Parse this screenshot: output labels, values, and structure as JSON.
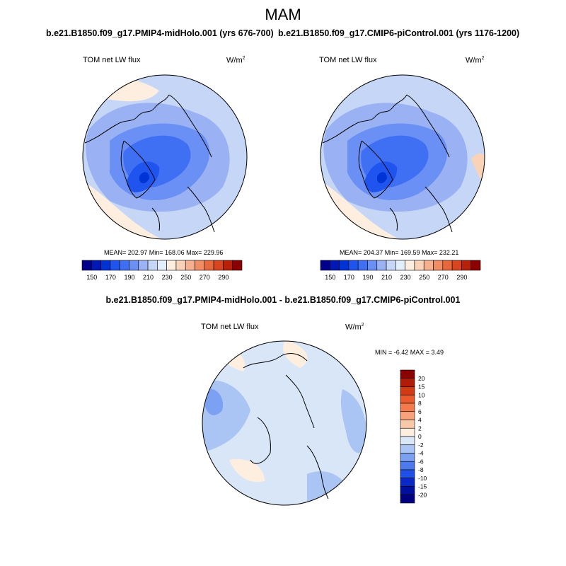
{
  "season": "MAM",
  "panels": [
    {
      "title": "b.e21.B1850.f09_g17.PMIP4-midHolo.001 (yrs 676-700)",
      "variable": "TOM net LW flux",
      "units": "W/m",
      "units_exp": "2",
      "stats": {
        "mean": "202.97",
        "min": "168.06",
        "max": "229.96"
      },
      "stats_text": "MEAN= 202.97  Min= 168.06  Max= 229.96"
    },
    {
      "title": "b.e21.B1850.f09_g17.CMIP6-piControl.001 (yrs 1176-1200)",
      "variable": "TOM net LW flux",
      "units": "W/m",
      "units_exp": "2",
      "stats": {
        "mean": "204.37",
        "min": "169.59",
        "max": "232.21"
      },
      "stats_text": "MEAN= 204.37  Min= 169.59  Max= 232.21"
    }
  ],
  "difference": {
    "title": "b.e21.B1850.f09_g17.PMIP4-midHolo.001 - b.e21.B1850.f09_g17.CMIP6-piControl.001",
    "variable": "TOM net LW flux",
    "units": "W/m",
    "units_exp": "2",
    "stats": {
      "min": "-6.42",
      "max": "3.49"
    },
    "stats_text": "MIN =  -6.42 MAX =   3.49"
  },
  "colorbar_main": {
    "tick_labels": [
      "150",
      "170",
      "190",
      "210",
      "230",
      "250",
      "270",
      "290"
    ],
    "colors": [
      "#00008b",
      "#0019b4",
      "#0033d6",
      "#1f55ee",
      "#3f70f4",
      "#6a90f6",
      "#9ab2f4",
      "#c5d6f7",
      "#e3eefb",
      "#fdeee0",
      "#f9d2b7",
      "#f6b090",
      "#f08d65",
      "#e8683e",
      "#d9451e",
      "#b82108",
      "#8b0000"
    ]
  },
  "colorbar_diff": {
    "levels": [
      "20",
      "15",
      "10",
      "8",
      "6",
      "4",
      "2",
      "0",
      "-2",
      "-4",
      "-6",
      "-8",
      "-10",
      "-15",
      "-20"
    ],
    "colors": [
      "#8b0000",
      "#b01c06",
      "#d23a14",
      "#ea5a2c",
      "#f47a4b",
      "#f7a27a",
      "#f8c9a8",
      "#fdeedf",
      "#d8e6f8",
      "#aac4f4",
      "#7ca0f2",
      "#4d79ee",
      "#2050e6",
      "#0a28c6",
      "#00109e",
      "#000080"
    ]
  }
}
